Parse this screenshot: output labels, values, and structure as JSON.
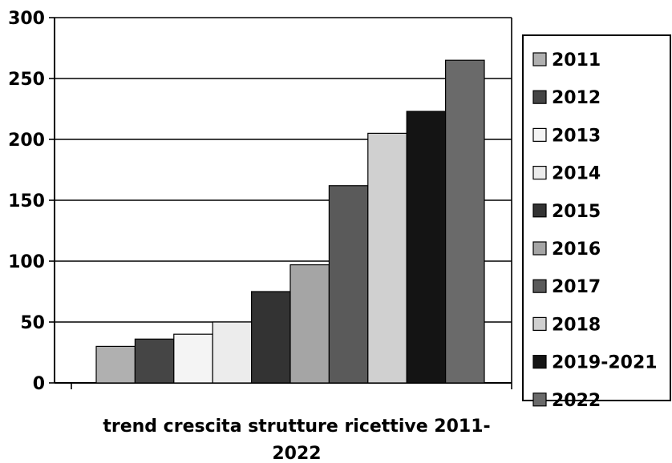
{
  "chart_data": {
    "type": "bar",
    "title": "",
    "xlabel": "trend crescita strutture ricettive 2011-2022",
    "xlabel_lines": [
      "trend crescita strutture ricettive 2011-",
      "2022"
    ],
    "ylabel": "",
    "ylim": [
      0,
      300
    ],
    "yticks": [
      0,
      50,
      100,
      150,
      200,
      250,
      300
    ],
    "ytick_labels": [
      "0",
      "50",
      "100",
      "150",
      "200",
      "250",
      "300"
    ],
    "grid": true,
    "legend_position": "right",
    "categories": [
      "2011",
      "2012",
      "2013",
      "2014",
      "2015",
      "2016",
      "2017",
      "2018",
      "2019-2021",
      "2022"
    ],
    "series": [
      {
        "name": "2011",
        "value": 30,
        "color": "#b0b0b0"
      },
      {
        "name": "2012",
        "value": 36,
        "color": "#454545"
      },
      {
        "name": "2013",
        "value": 40,
        "color": "#f4f4f4"
      },
      {
        "name": "2014",
        "value": 50,
        "color": "#ececec"
      },
      {
        "name": "2015",
        "value": 75,
        "color": "#333333"
      },
      {
        "name": "2016",
        "value": 97,
        "color": "#a5a5a5"
      },
      {
        "name": "2017",
        "value": 162,
        "color": "#5a5a5a"
      },
      {
        "name": "2018",
        "value": 205,
        "color": "#d0d0d0"
      },
      {
        "name": "2019-2021",
        "value": 223,
        "color": "#141414"
      },
      {
        "name": "2022",
        "value": 265,
        "color": "#6a6a6a"
      }
    ]
  }
}
